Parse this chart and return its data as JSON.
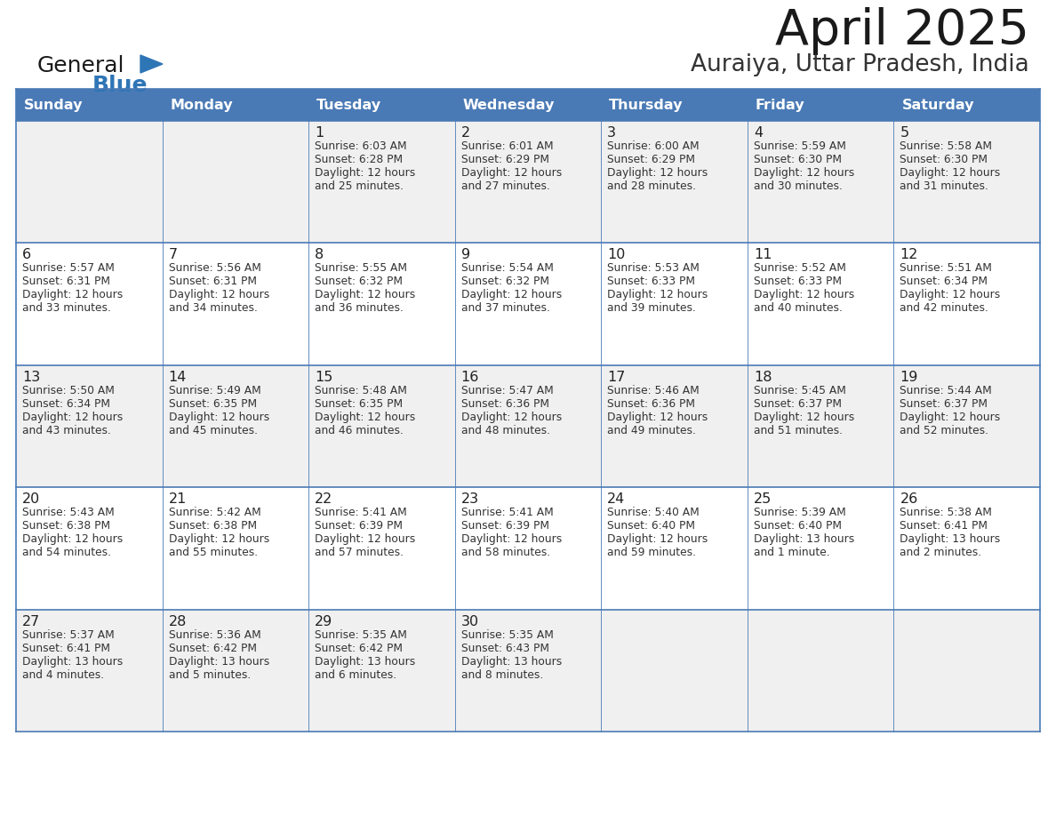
{
  "title": "April 2025",
  "subtitle": "Auraiya, Uttar Pradesh, India",
  "days_of_week": [
    "Sunday",
    "Monday",
    "Tuesday",
    "Wednesday",
    "Thursday",
    "Friday",
    "Saturday"
  ],
  "header_bg": "#4a7ab5",
  "header_text": "#ffffff",
  "cell_bg_odd": "#f0f0f0",
  "cell_bg_even": "#ffffff",
  "cell_text": "#222222",
  "border_color": "#4a7ab5",
  "title_color": "#1a1a1a",
  "subtitle_color": "#333333",
  "logo_general_color": "#1a1a1a",
  "logo_blue_color": "#2e75b6",
  "calendar_data": [
    [
      {
        "day": null
      },
      {
        "day": null
      },
      {
        "day": 1,
        "sunrise": "6:03 AM",
        "sunset": "6:28 PM",
        "daylight_line1": "12 hours",
        "daylight_line2": "and 25 minutes."
      },
      {
        "day": 2,
        "sunrise": "6:01 AM",
        "sunset": "6:29 PM",
        "daylight_line1": "12 hours",
        "daylight_line2": "and 27 minutes."
      },
      {
        "day": 3,
        "sunrise": "6:00 AM",
        "sunset": "6:29 PM",
        "daylight_line1": "12 hours",
        "daylight_line2": "and 28 minutes."
      },
      {
        "day": 4,
        "sunrise": "5:59 AM",
        "sunset": "6:30 PM",
        "daylight_line1": "12 hours",
        "daylight_line2": "and 30 minutes."
      },
      {
        "day": 5,
        "sunrise": "5:58 AM",
        "sunset": "6:30 PM",
        "daylight_line1": "12 hours",
        "daylight_line2": "and 31 minutes."
      }
    ],
    [
      {
        "day": 6,
        "sunrise": "5:57 AM",
        "sunset": "6:31 PM",
        "daylight_line1": "12 hours",
        "daylight_line2": "and 33 minutes."
      },
      {
        "day": 7,
        "sunrise": "5:56 AM",
        "sunset": "6:31 PM",
        "daylight_line1": "12 hours",
        "daylight_line2": "and 34 minutes."
      },
      {
        "day": 8,
        "sunrise": "5:55 AM",
        "sunset": "6:32 PM",
        "daylight_line1": "12 hours",
        "daylight_line2": "and 36 minutes."
      },
      {
        "day": 9,
        "sunrise": "5:54 AM",
        "sunset": "6:32 PM",
        "daylight_line1": "12 hours",
        "daylight_line2": "and 37 minutes."
      },
      {
        "day": 10,
        "sunrise": "5:53 AM",
        "sunset": "6:33 PM",
        "daylight_line1": "12 hours",
        "daylight_line2": "and 39 minutes."
      },
      {
        "day": 11,
        "sunrise": "5:52 AM",
        "sunset": "6:33 PM",
        "daylight_line1": "12 hours",
        "daylight_line2": "and 40 minutes."
      },
      {
        "day": 12,
        "sunrise": "5:51 AM",
        "sunset": "6:34 PM",
        "daylight_line1": "12 hours",
        "daylight_line2": "and 42 minutes."
      }
    ],
    [
      {
        "day": 13,
        "sunrise": "5:50 AM",
        "sunset": "6:34 PM",
        "daylight_line1": "12 hours",
        "daylight_line2": "and 43 minutes."
      },
      {
        "day": 14,
        "sunrise": "5:49 AM",
        "sunset": "6:35 PM",
        "daylight_line1": "12 hours",
        "daylight_line2": "and 45 minutes."
      },
      {
        "day": 15,
        "sunrise": "5:48 AM",
        "sunset": "6:35 PM",
        "daylight_line1": "12 hours",
        "daylight_line2": "and 46 minutes."
      },
      {
        "day": 16,
        "sunrise": "5:47 AM",
        "sunset": "6:36 PM",
        "daylight_line1": "12 hours",
        "daylight_line2": "and 48 minutes."
      },
      {
        "day": 17,
        "sunrise": "5:46 AM",
        "sunset": "6:36 PM",
        "daylight_line1": "12 hours",
        "daylight_line2": "and 49 minutes."
      },
      {
        "day": 18,
        "sunrise": "5:45 AM",
        "sunset": "6:37 PM",
        "daylight_line1": "12 hours",
        "daylight_line2": "and 51 minutes."
      },
      {
        "day": 19,
        "sunrise": "5:44 AM",
        "sunset": "6:37 PM",
        "daylight_line1": "12 hours",
        "daylight_line2": "and 52 minutes."
      }
    ],
    [
      {
        "day": 20,
        "sunrise": "5:43 AM",
        "sunset": "6:38 PM",
        "daylight_line1": "12 hours",
        "daylight_line2": "and 54 minutes."
      },
      {
        "day": 21,
        "sunrise": "5:42 AM",
        "sunset": "6:38 PM",
        "daylight_line1": "12 hours",
        "daylight_line2": "and 55 minutes."
      },
      {
        "day": 22,
        "sunrise": "5:41 AM",
        "sunset": "6:39 PM",
        "daylight_line1": "12 hours",
        "daylight_line2": "and 57 minutes."
      },
      {
        "day": 23,
        "sunrise": "5:41 AM",
        "sunset": "6:39 PM",
        "daylight_line1": "12 hours",
        "daylight_line2": "and 58 minutes."
      },
      {
        "day": 24,
        "sunrise": "5:40 AM",
        "sunset": "6:40 PM",
        "daylight_line1": "12 hours",
        "daylight_line2": "and 59 minutes."
      },
      {
        "day": 25,
        "sunrise": "5:39 AM",
        "sunset": "6:40 PM",
        "daylight_line1": "13 hours",
        "daylight_line2": "and 1 minute."
      },
      {
        "day": 26,
        "sunrise": "5:38 AM",
        "sunset": "6:41 PM",
        "daylight_line1": "13 hours",
        "daylight_line2": "and 2 minutes."
      }
    ],
    [
      {
        "day": 27,
        "sunrise": "5:37 AM",
        "sunset": "6:41 PM",
        "daylight_line1": "13 hours",
        "daylight_line2": "and 4 minutes."
      },
      {
        "day": 28,
        "sunrise": "5:36 AM",
        "sunset": "6:42 PM",
        "daylight_line1": "13 hours",
        "daylight_line2": "and 5 minutes."
      },
      {
        "day": 29,
        "sunrise": "5:35 AM",
        "sunset": "6:42 PM",
        "daylight_line1": "13 hours",
        "daylight_line2": "and 6 minutes."
      },
      {
        "day": 30,
        "sunrise": "5:35 AM",
        "sunset": "6:43 PM",
        "daylight_line1": "13 hours",
        "daylight_line2": "and 8 minutes."
      },
      {
        "day": null
      },
      {
        "day": null
      },
      {
        "day": null
      }
    ]
  ]
}
